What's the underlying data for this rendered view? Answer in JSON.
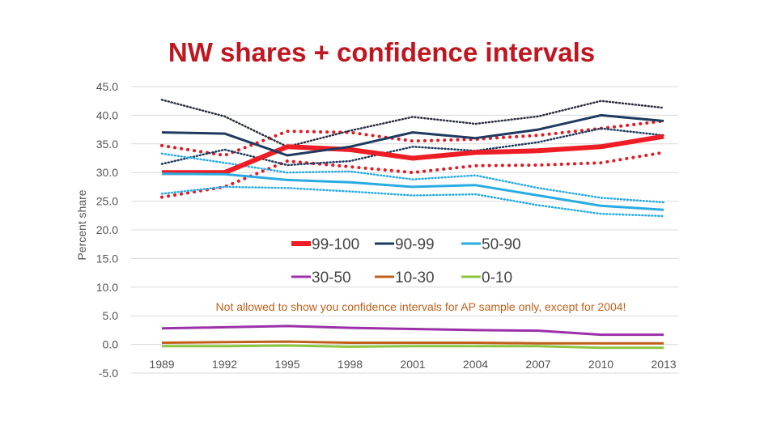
{
  "title": "NW shares + confidence intervals",
  "chart_data": {
    "type": "line",
    "title": "NW shares + confidence intervals",
    "xlabel": "",
    "ylabel": "Percent share",
    "ylim": [
      -5,
      45
    ],
    "grid": true,
    "y_ticks": [
      "45.0",
      "40.0",
      "35.0",
      "30.0",
      "25.0",
      "20.0",
      "15.0",
      "10.0",
      "5.0",
      "0.0",
      "-5.0"
    ],
    "y_tick_values": [
      45,
      40,
      35,
      30,
      25,
      20,
      15,
      10,
      5,
      0,
      -5
    ],
    "categories": [
      "1989",
      "1992",
      "1995",
      "1998",
      "2001",
      "2004",
      "2007",
      "2010",
      "2013"
    ],
    "series": [
      {
        "name": "99-100",
        "color": "#ee1c24",
        "values": [
          30.0,
          30.0,
          34.5,
          34.0,
          32.5,
          33.5,
          33.8,
          34.5,
          36.3
        ]
      },
      {
        "name": "90-99",
        "color": "#1f3a5f",
        "values": [
          37.0,
          36.8,
          33.0,
          34.5,
          37.0,
          36.0,
          37.5,
          40.0,
          39.0
        ]
      },
      {
        "name": "50-90",
        "color": "#29abe2",
        "values": [
          29.8,
          29.7,
          28.7,
          28.3,
          27.5,
          27.8,
          26.0,
          24.2,
          23.5
        ]
      },
      {
        "name": "30-50",
        "color": "#9b30a8",
        "values": [
          2.8,
          3.0,
          3.2,
          2.9,
          2.7,
          2.5,
          2.4,
          1.7,
          1.7
        ]
      },
      {
        "name": "10-30",
        "color": "#c0601a",
        "values": [
          0.3,
          0.4,
          0.5,
          0.3,
          0.3,
          0.3,
          0.2,
          0.2,
          0.2
        ]
      },
      {
        "name": "0-10",
        "color": "#8cc63f",
        "values": [
          -0.3,
          -0.3,
          -0.2,
          -0.4,
          -0.3,
          -0.3,
          -0.3,
          -0.6,
          -0.6
        ]
      }
    ],
    "confidence_intervals": [
      {
        "series": "99-100",
        "color": "#e01b24",
        "lower": [
          25.7,
          27.5,
          32.0,
          31.0,
          30.0,
          31.2,
          31.3,
          31.7,
          33.5
        ],
        "upper": [
          34.7,
          33.0,
          37.2,
          37.0,
          35.5,
          35.8,
          36.5,
          37.7,
          39.0
        ]
      },
      {
        "series": "90-99",
        "color": "#1f3a5f",
        "lower": [
          31.5,
          34.0,
          31.3,
          32.0,
          34.5,
          33.8,
          35.3,
          37.7,
          36.5
        ]
      },
      {
        "series": "90-99 upper",
        "color": "#2a3040",
        "upper": [
          42.7,
          39.8,
          34.5,
          37.3,
          39.7,
          38.5,
          39.8,
          42.5,
          41.3
        ]
      },
      {
        "series": "50-90",
        "color": "#29abe2",
        "lower": [
          26.3,
          27.5,
          27.3,
          26.7,
          26.0,
          26.2,
          24.3,
          22.8,
          22.4
        ],
        "upper": [
          33.3,
          31.7,
          30.0,
          30.2,
          28.8,
          29.5,
          27.3,
          25.6,
          24.8
        ]
      }
    ],
    "legend": {
      "placement": "center",
      "rows": [
        [
          "99-100",
          "90-99",
          "50-90"
        ],
        [
          "30-50",
          "10-30",
          "0-10"
        ]
      ]
    },
    "annotation": "Not allowed to show you confidence intervals for AP sample only, except for 2004!"
  }
}
